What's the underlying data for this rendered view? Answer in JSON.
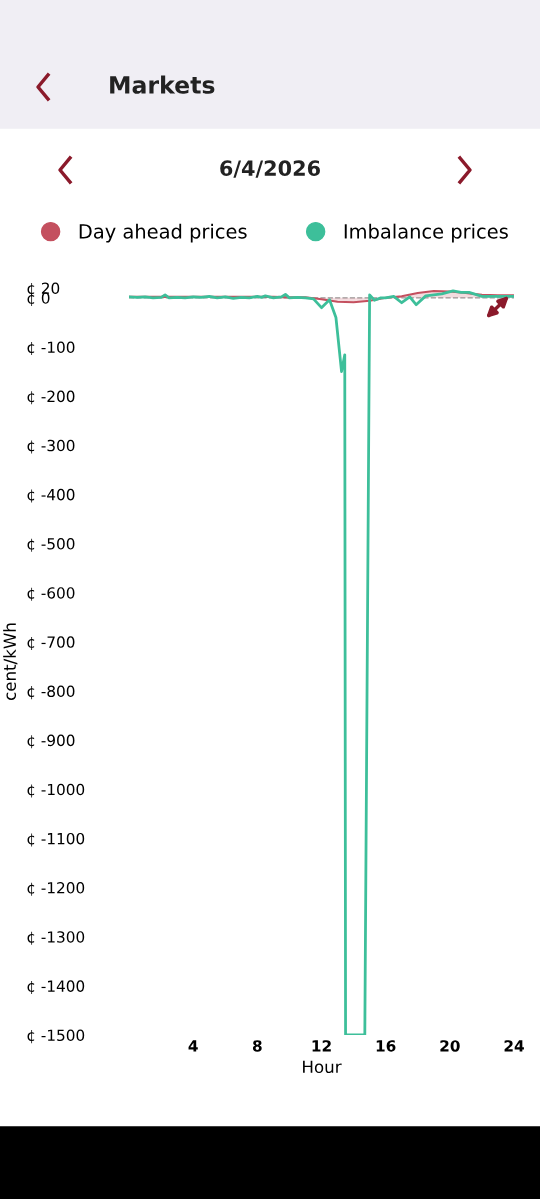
{
  "chart_data": {
    "type": "line",
    "title": "Markets",
    "subtitle": "6/4/2026",
    "xlabel": "Hour",
    "ylabel": "cent/kWh",
    "xlim": [
      0,
      24
    ],
    "xticks": [
      4,
      8,
      12,
      16,
      20,
      24
    ],
    "ylim": [
      -1500,
      20
    ],
    "yticks": [
      {
        "value": 20,
        "label": "¢ 20"
      },
      {
        "value": 0,
        "label": "¢ 0"
      },
      {
        "value": -100,
        "label": "¢ -100"
      },
      {
        "value": -200,
        "label": "¢ -200"
      },
      {
        "value": -300,
        "label": "¢ -300"
      },
      {
        "value": -400,
        "label": "¢ -400"
      },
      {
        "value": -500,
        "label": "¢ -500"
      },
      {
        "value": -600,
        "label": "¢ -600"
      },
      {
        "value": -700,
        "label": "¢ -700"
      },
      {
        "value": -800,
        "label": "¢ -800"
      },
      {
        "value": -900,
        "label": "¢ -900"
      },
      {
        "value": -1000,
        "label": "¢ -1000"
      },
      {
        "value": -1100,
        "label": "¢ -1100"
      },
      {
        "value": -1200,
        "label": "¢ -1200"
      },
      {
        "value": -1300,
        "label": "¢ -1300"
      },
      {
        "value": -1400,
        "label": "¢ -1400"
      },
      {
        "value": -1500,
        "label": "¢ -1500"
      }
    ],
    "legend": "top",
    "grid": false,
    "ref_lines": [
      {
        "axis": "y",
        "value": 0,
        "color": "#999999",
        "line_style": "dashed"
      }
    ],
    "series": [
      {
        "name": "Day ahead prices",
        "type": "area",
        "color": "#c4505f",
        "x": [
          0,
          1,
          2,
          3,
          4,
          5,
          6,
          7,
          8,
          9,
          10,
          11,
          12,
          13,
          14,
          15,
          16,
          17,
          18,
          19,
          20,
          21,
          22,
          23,
          24
        ],
        "values": [
          2,
          2,
          2,
          2,
          2,
          2,
          2,
          2,
          2,
          2,
          1,
          1,
          -3,
          -8,
          -9,
          -6,
          0,
          3,
          10,
          14,
          13,
          10,
          6,
          5,
          5
        ]
      },
      {
        "name": "Imbalance prices",
        "color": "#3dbf9a",
        "x": [
          0,
          0.5,
          1,
          1.5,
          2,
          2.25,
          2.5,
          3,
          3.5,
          4,
          4.5,
          5,
          5.5,
          6,
          6.5,
          7,
          7.5,
          8,
          8.25,
          8.5,
          9,
          9.5,
          9.75,
          10,
          10.5,
          11,
          11.5,
          12,
          12.5,
          12.9,
          13.25,
          13.45,
          13.5,
          13.7,
          14.7,
          15.0,
          15.3,
          15.7,
          16.0,
          16.5,
          17.0,
          17.5,
          17.9,
          18.5,
          19.0,
          19.5,
          20.2,
          20.7,
          21.2,
          22.0,
          22.5,
          23.0,
          23.5,
          24
        ],
        "values": [
          2,
          1,
          2,
          0,
          1,
          6,
          0,
          1,
          0,
          2,
          1,
          3,
          0,
          2,
          -1,
          1,
          0,
          3,
          1,
          4,
          0,
          2,
          7,
          0,
          1,
          0,
          -2,
          -20,
          -4,
          -40,
          -150,
          -116,
          -1500,
          -1500,
          -1500,
          6,
          -5,
          0,
          0,
          3,
          -10,
          2,
          -14,
          4,
          6,
          8,
          14,
          11,
          11,
          3,
          3,
          3,
          3,
          3
        ]
      }
    ]
  }
}
